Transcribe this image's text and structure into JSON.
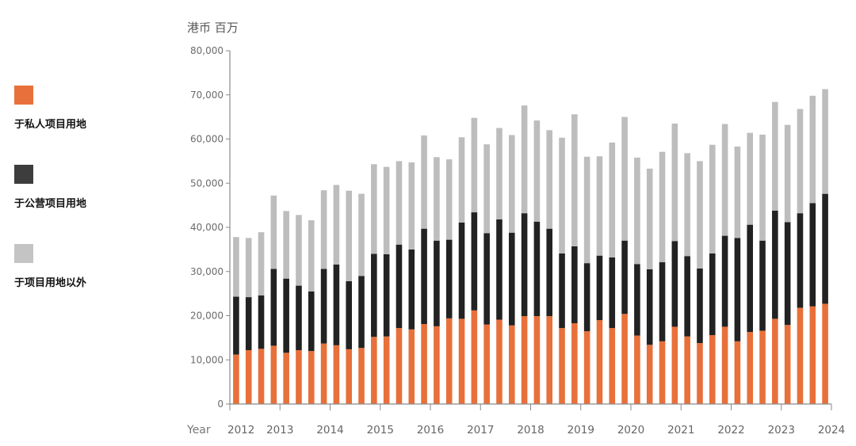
{
  "legend": {
    "items": [
      {
        "label": "于私人项目用地",
        "color": "#E8703A",
        "icon": "square-swatch"
      },
      {
        "label": "于公营项目用地",
        "color": "#3D3D3D",
        "icon": "square-swatch"
      },
      {
        "label": "于项目用地以外",
        "color": "#C4C4C4",
        "icon": "square-swatch"
      }
    ]
  },
  "chart_data": {
    "type": "bar",
    "stacked": true,
    "ylabel": "港币 百万",
    "xlabel": "Year",
    "ylim": [
      0,
      80000
    ],
    "yticks": [
      0,
      10000,
      20000,
      30000,
      40000,
      50000,
      60000,
      70000,
      80000
    ],
    "ytick_labels": [
      "0",
      "10,000",
      "20,000",
      "30,000",
      "40,000",
      "50,000",
      "60,000",
      "70,000",
      "80,000"
    ],
    "xticks": [
      "2012",
      "2013",
      "2014",
      "2015",
      "2016",
      "2017",
      "2018",
      "2019",
      "2020",
      "2021",
      "2022",
      "2023",
      "2024"
    ],
    "bars_per_year": 4,
    "series_colors": [
      "#E8703A",
      "#222222",
      "#BDBDBD"
    ],
    "series_names": [
      "于私人项目用地",
      "于公营项目用地",
      "于项目用地以外"
    ],
    "series": [
      {
        "name": "于私人项目用地",
        "values": [
          11200,
          12200,
          12500,
          13200,
          11600,
          12200,
          12000,
          13700,
          13300,
          12400,
          12700,
          15200,
          15300,
          17200,
          16900,
          18100,
          17600,
          19400,
          19300,
          21200,
          18000,
          19100,
          17800,
          19900,
          19900,
          19900,
          17200,
          18300,
          16500,
          19000,
          17200,
          20400,
          15500,
          13400,
          14200,
          17500,
          15300,
          13800,
          15600,
          17500,
          14200,
          16300,
          16600,
          19300,
          17900,
          21800,
          22100,
          22700
        ]
      },
      {
        "name": "于公营项目用地",
        "values": [
          13100,
          12000,
          12100,
          17400,
          16800,
          14600,
          13500,
          16900,
          18300,
          15400,
          16300,
          18800,
          18600,
          18900,
          18100,
          21600,
          19400,
          17800,
          21800,
          22200,
          20700,
          22700,
          21000,
          23300,
          21400,
          19800,
          16900,
          17400,
          15400,
          14600,
          16000,
          16600,
          16200,
          17100,
          17900,
          19400,
          18200,
          16900,
          18500,
          20600,
          23400,
          24300,
          20400,
          24500,
          23300,
          21400,
          23400,
          24900
        ]
      },
      {
        "name": "于项目用地以外",
        "values": [
          13500,
          13400,
          14300,
          16600,
          15300,
          16000,
          16100,
          17800,
          18000,
          20500,
          18600,
          20300,
          19800,
          18900,
          19700,
          21100,
          18900,
          18200,
          19300,
          21400,
          20100,
          20700,
          22100,
          24400,
          22900,
          22300,
          26200,
          29900,
          24100,
          22500,
          26000,
          28000,
          24100,
          22800,
          25000,
          26600,
          23300,
          24300,
          24600,
          25300,
          20700,
          20800,
          24000,
          24600,
          22000,
          23600,
          24300,
          23700
        ]
      }
    ]
  }
}
